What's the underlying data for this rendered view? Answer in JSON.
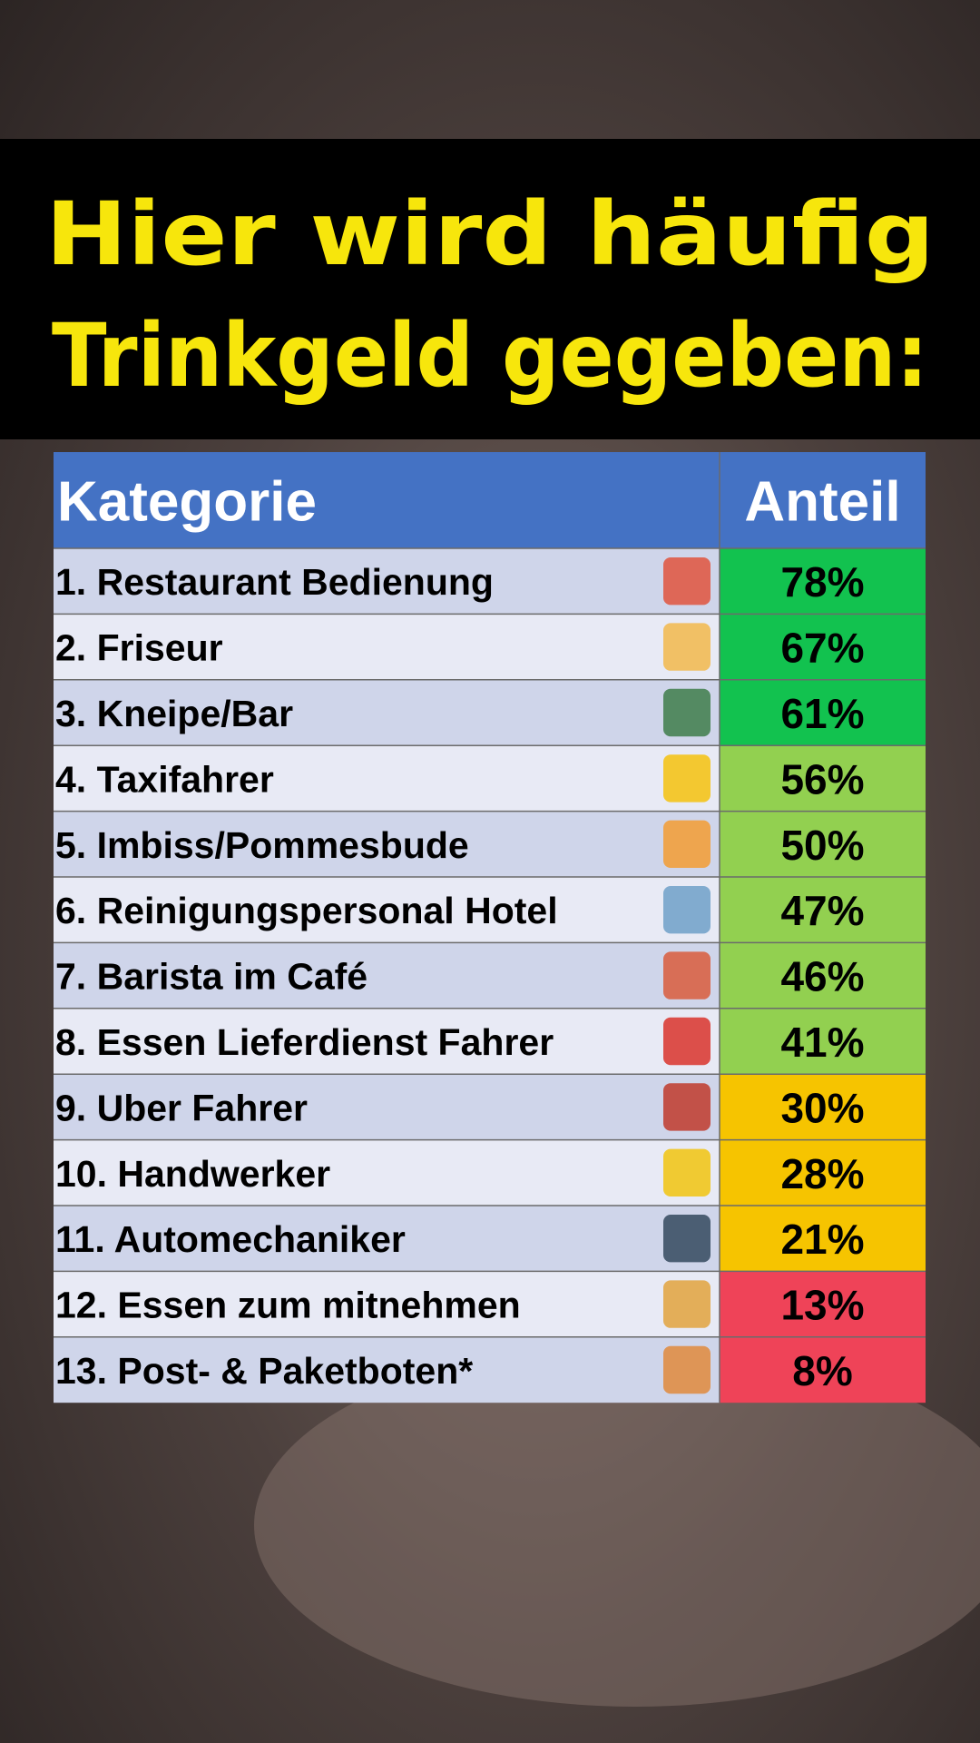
{
  "header": {
    "title_lines": [
      "Hier wird häufig",
      "Trinkgeld gegeben:"
    ]
  },
  "table": {
    "columns": [
      "Kategorie",
      "Anteil"
    ],
    "header_color": "#4472c4",
    "rows": [
      {
        "label": "1. Restaurant Bedienung",
        "share": "78%",
        "color": "#12c24f"
      },
      {
        "label": "2. Friseur",
        "share": "67%",
        "color": "#12c24f"
      },
      {
        "label": "3. Kneipe/Bar",
        "share": "61%",
        "color": "#12c24f"
      },
      {
        "label": "4. Taxifahrer",
        "share": "56%",
        "color": "#92d050"
      },
      {
        "label": "5. Imbiss/Pommesbude",
        "share": "50%",
        "color": "#92d050"
      },
      {
        "label": "6. Reinigungspersonal Hotel",
        "share": "47%",
        "color": "#92d050"
      },
      {
        "label": "7. Barista im Café",
        "share": "46%",
        "color": "#92d050"
      },
      {
        "label": "8. Essen Lieferdienst Fahrer",
        "share": "41%",
        "color": "#92d050"
      },
      {
        "label": "9. Uber Fahrer",
        "share": "30%",
        "color": "#f6c400"
      },
      {
        "label": "10. Handwerker",
        "share": "28%",
        "color": "#f6c400"
      },
      {
        "label": "11. Automechaniker",
        "share": "21%",
        "color": "#f6c400"
      },
      {
        "label": "12. Essen zum mitnehmen",
        "share": "13%",
        "color": "#ef4358"
      },
      {
        "label": "13. Post- & Paketboten*",
        "share": "8%",
        "color": "#ef4358"
      }
    ]
  }
}
